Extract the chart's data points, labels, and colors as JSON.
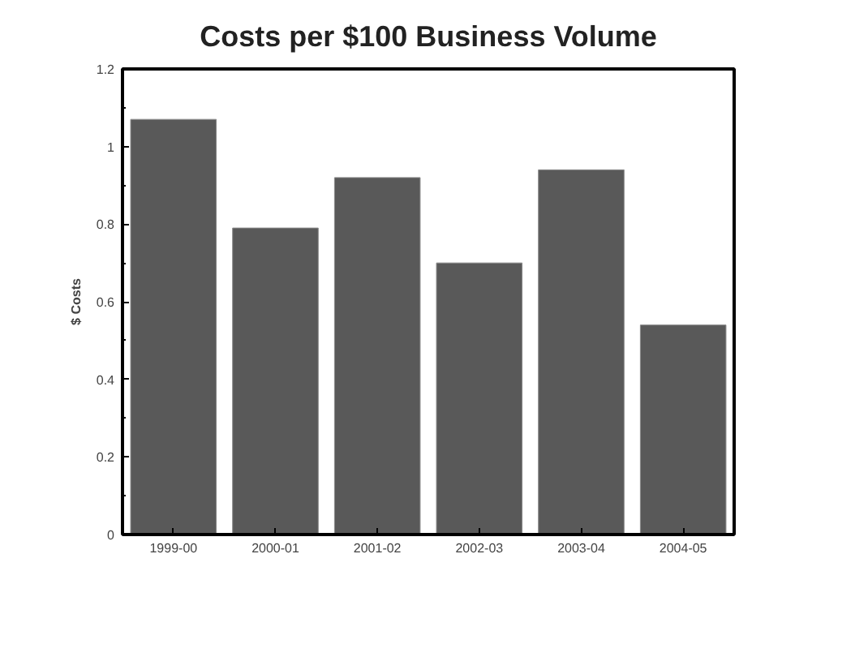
{
  "chart_data": {
    "type": "bar",
    "title": "Costs per $100 Business Volume",
    "ylabel": "$ Costs",
    "categories": [
      "1999-00",
      "2000-01",
      "2001-02",
      "2002-03",
      "2003-04",
      "2004-05"
    ],
    "values": [
      1.07,
      0.79,
      0.92,
      0.7,
      0.94,
      0.54
    ],
    "color": "#595959",
    "ylim": [
      0,
      1.2
    ],
    "yticks": [
      0,
      0.2,
      0.4,
      0.6,
      0.8,
      1,
      1.2
    ],
    "grid": false
  }
}
